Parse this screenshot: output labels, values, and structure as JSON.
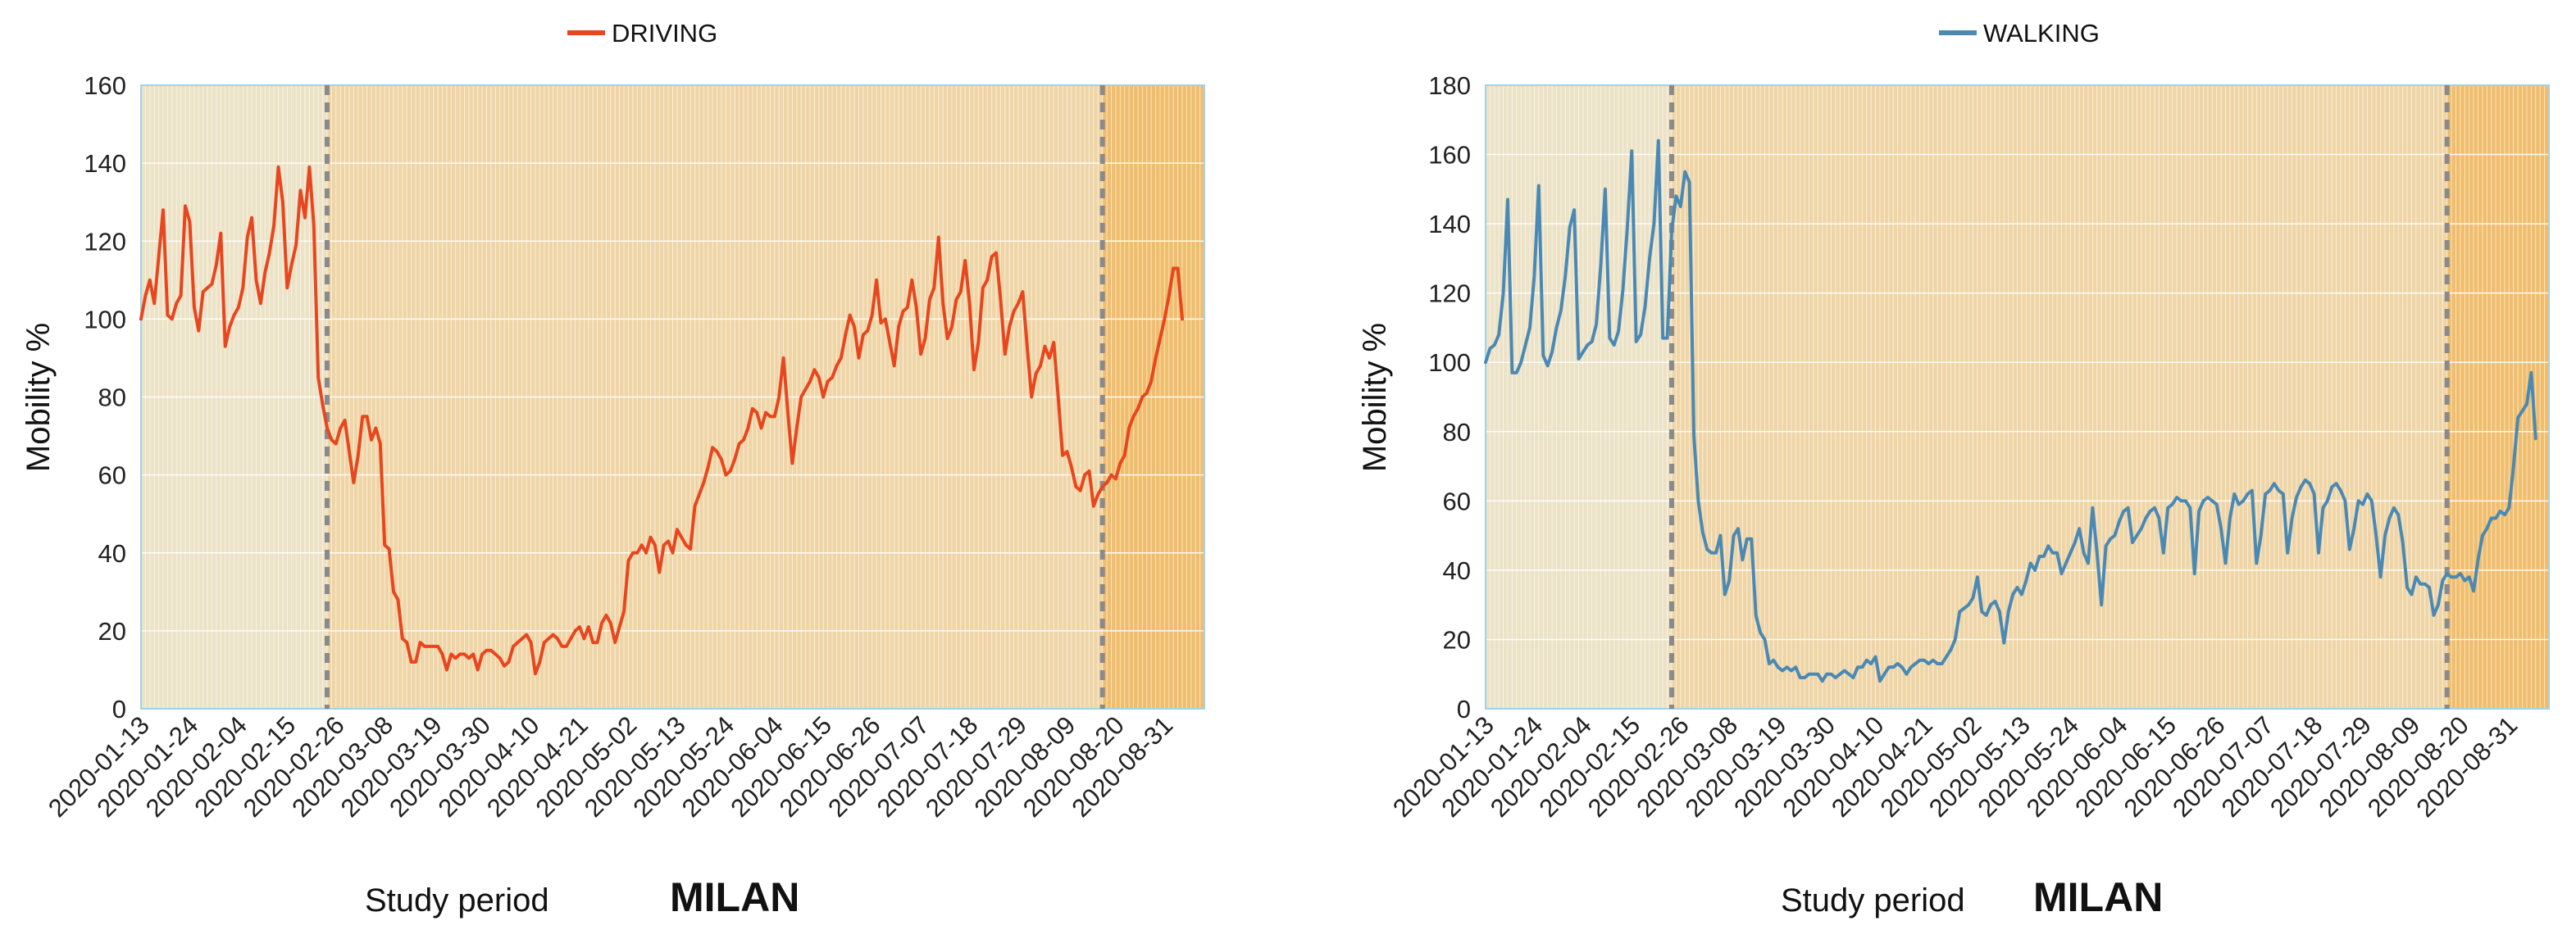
{
  "colors": {
    "driving": "#e8461e",
    "walking": "#4a89b4",
    "phase1_bg": "#ece2c6",
    "phase2_bg": "#efd5a6",
    "phase3_bg": "#f0bd6c",
    "grid": "#ffffff",
    "frame": "#9fd3e8",
    "phase_divider": "#8a8a8a"
  },
  "chart_data": [
    {
      "type": "line",
      "title": "",
      "legend": {
        "label": "DRIVING",
        "placement": "top-center"
      },
      "xlabel": "Study period",
      "location_label": "MILAN",
      "ylabel": "Mobility %",
      "ylim": [
        0,
        160
      ],
      "yticks": [
        0,
        20,
        40,
        60,
        80,
        100,
        120,
        140,
        160
      ],
      "xlim": [
        "2020-01-13",
        "2020-09-09"
      ],
      "xticks": [
        "2020-01-13",
        "2020-01-24",
        "2020-02-04",
        "2020-02-15",
        "2020-02-26",
        "2020-03-08",
        "2020-03-19",
        "2020-03-30",
        "2020-04-10",
        "2020-04-21",
        "2020-05-02",
        "2020-05-13",
        "2020-05-24",
        "2020-06-04",
        "2020-06-15",
        "2020-06-26",
        "2020-07-07",
        "2020-07-18",
        "2020-07-29",
        "2020-08-09",
        "2020-08-20",
        "2020-08-31"
      ],
      "phase_dividers": [
        "2020-02-24",
        "2020-08-17"
      ],
      "grid": true,
      "series": [
        {
          "start_date": "2020-01-13",
          "values": [
            100,
            106,
            110,
            104,
            116,
            128,
            101,
            100,
            104,
            106,
            129,
            125,
            103,
            97,
            107,
            108,
            109,
            114,
            122,
            93,
            98,
            101,
            103,
            108,
            121,
            126,
            110,
            104,
            112,
            117,
            124,
            139,
            130,
            108,
            114,
            119,
            133,
            126,
            139,
            124,
            85,
            78,
            72,
            69,
            68,
            72,
            74,
            66,
            58,
            65,
            75,
            75,
            69,
            72,
            68,
            42,
            41,
            30,
            28,
            18,
            17,
            12,
            12,
            17,
            16,
            16,
            16,
            16,
            14,
            10,
            14,
            13,
            14,
            14,
            13,
            14,
            10,
            14,
            15,
            15,
            14,
            13,
            11,
            12,
            16,
            17,
            18,
            19,
            17,
            9,
            12,
            17,
            18,
            19,
            18,
            16,
            16,
            18,
            20,
            21,
            18,
            21,
            17,
            17,
            22,
            24,
            22,
            17,
            21,
            25,
            38,
            40,
            40,
            42,
            40,
            44,
            42,
            35,
            42,
            43,
            40,
            46,
            44,
            42,
            41,
            52,
            55,
            58,
            62,
            67,
            66,
            64,
            60,
            61,
            64,
            68,
            69,
            72,
            77,
            76,
            72,
            76,
            75,
            75,
            80,
            90,
            76,
            63,
            72,
            80,
            82,
            84,
            87,
            85,
            80,
            84,
            85,
            88,
            90,
            96,
            101,
            98,
            90,
            96,
            97,
            101,
            110,
            99,
            100,
            94,
            88,
            98,
            102,
            103,
            110,
            103,
            91,
            95,
            105,
            108,
            121,
            104,
            95,
            98,
            105,
            107,
            115,
            104,
            87,
            94,
            108,
            110,
            116,
            117,
            105,
            91,
            98,
            102,
            104,
            107,
            93,
            80,
            86,
            88,
            93,
            90,
            94,
            80,
            65,
            66,
            62,
            57,
            56,
            60,
            61,
            52,
            55,
            57,
            58,
            60,
            59,
            63,
            65,
            72,
            75,
            77,
            80,
            81,
            84,
            90,
            95,
            100,
            106,
            113,
            113,
            100
          ]
        }
      ]
    },
    {
      "type": "line",
      "title": "",
      "legend": {
        "label": "WALKING",
        "placement": "top-center"
      },
      "xlabel": "Study period",
      "location_label": "MILAN",
      "ylabel": "Mobility %",
      "ylim": [
        0,
        180
      ],
      "yticks": [
        0,
        20,
        40,
        60,
        80,
        100,
        120,
        140,
        160,
        180
      ],
      "xlim": [
        "2020-01-13",
        "2020-09-09"
      ],
      "xticks": [
        "2020-01-13",
        "2020-01-24",
        "2020-02-04",
        "2020-02-15",
        "2020-02-26",
        "2020-03-08",
        "2020-03-19",
        "2020-03-30",
        "2020-04-10",
        "2020-04-21",
        "2020-05-02",
        "2020-05-13",
        "2020-05-24",
        "2020-06-04",
        "2020-06-15",
        "2020-06-26",
        "2020-07-07",
        "2020-07-18",
        "2020-07-29",
        "2020-08-09",
        "2020-08-20",
        "2020-08-31"
      ],
      "phase_dividers": [
        "2020-02-24",
        "2020-08-17"
      ],
      "grid": true,
      "series": [
        {
          "start_date": "2020-01-13",
          "values": [
            100,
            104,
            105,
            108,
            120,
            147,
            97,
            97,
            100,
            105,
            110,
            125,
            151,
            102,
            99,
            103,
            110,
            115,
            125,
            139,
            144,
            101,
            103,
            105,
            106,
            111,
            128,
            150,
            107,
            105,
            109,
            121,
            139,
            161,
            106,
            108,
            116,
            130,
            140,
            164,
            107,
            107,
            138,
            148,
            145,
            155,
            152,
            79,
            60,
            51,
            46,
            45,
            45,
            50,
            33,
            37,
            50,
            52,
            43,
            49,
            49,
            27,
            22,
            20,
            13,
            14,
            12,
            11,
            12,
            11,
            12,
            9,
            9,
            10,
            10,
            10,
            8,
            10,
            10,
            9,
            10,
            11,
            10,
            9,
            12,
            12,
            14,
            13,
            15,
            8,
            10,
            12,
            12,
            13,
            12,
            10,
            12,
            13,
            14,
            14,
            13,
            14,
            13,
            13,
            15,
            17,
            20,
            28,
            29,
            30,
            32,
            38,
            28,
            27,
            30,
            31,
            28,
            19,
            28,
            33,
            35,
            33,
            37,
            42,
            40,
            44,
            44,
            47,
            45,
            45,
            39,
            42,
            45,
            48,
            52,
            45,
            42,
            58,
            45,
            30,
            47,
            49,
            50,
            54,
            57,
            58,
            48,
            50,
            52,
            55,
            57,
            58,
            55,
            45,
            58,
            59,
            61,
            60,
            60,
            58,
            39,
            57,
            60,
            61,
            60,
            59,
            52,
            42,
            55,
            62,
            59,
            60,
            62,
            63,
            42,
            50,
            62,
            63,
            65,
            63,
            62,
            45,
            55,
            61,
            64,
            66,
            65,
            62,
            45,
            58,
            60,
            64,
            65,
            63,
            60,
            46,
            52,
            60,
            59,
            62,
            60,
            50,
            38,
            50,
            55,
            58,
            56,
            48,
            35,
            33,
            38,
            36,
            36,
            35,
            27,
            30,
            37,
            39,
            38,
            38,
            39,
            37,
            38,
            34,
            43,
            50,
            52,
            55,
            55,
            57,
            56,
            58,
            70,
            84,
            86,
            88,
            97,
            78
          ]
        }
      ]
    }
  ]
}
